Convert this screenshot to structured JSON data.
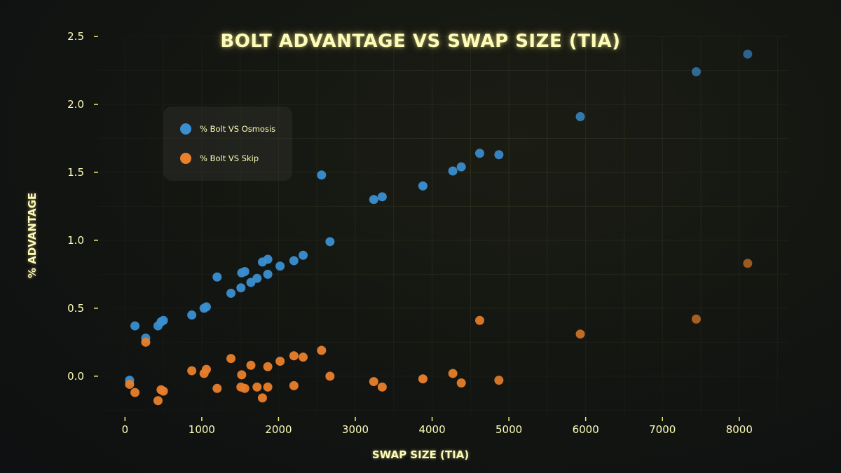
{
  "chart_data": {
    "type": "scatter",
    "title": "BOLT ADVANTAGE VS SWAP SIZE (TIA)",
    "xlabel": "SWAP SIZE (TIA)",
    "ylabel": "% ADVANTAGE",
    "xlim": [
      -350,
      8650
    ],
    "ylim": [
      -0.3,
      2.5
    ],
    "xticks": [
      0,
      1000,
      2000,
      3000,
      4000,
      5000,
      6000,
      7000,
      8000
    ],
    "yticks": [
      0.0,
      0.5,
      1.0,
      1.5,
      2.0,
      2.5
    ],
    "xtick_labels": [
      "0",
      "1000",
      "2000",
      "3000",
      "4000",
      "5000",
      "6000",
      "7000",
      "8000"
    ],
    "ytick_labels": [
      "0.0",
      "0.5",
      "1.0",
      "1.5",
      "2.0",
      "2.5"
    ],
    "grid": true,
    "legend_position": "top-left",
    "series": [
      {
        "name": "% Bolt VS Osmosis",
        "color": "#3a8fd1",
        "points": [
          [
            60,
            -0.03
          ],
          [
            130,
            0.37
          ],
          [
            270,
            0.28
          ],
          [
            430,
            0.37
          ],
          [
            470,
            0.4
          ],
          [
            500,
            0.41
          ],
          [
            870,
            0.45
          ],
          [
            1030,
            0.5
          ],
          [
            1060,
            0.51
          ],
          [
            1200,
            0.73
          ],
          [
            1380,
            0.61
          ],
          [
            1510,
            0.65
          ],
          [
            1520,
            0.76
          ],
          [
            1560,
            0.77
          ],
          [
            1640,
            0.69
          ],
          [
            1720,
            0.72
          ],
          [
            1790,
            0.84
          ],
          [
            1860,
            0.86
          ],
          [
            1860,
            0.75
          ],
          [
            2020,
            0.81
          ],
          [
            2200,
            0.85
          ],
          [
            2320,
            0.89
          ],
          [
            2560,
            1.48
          ],
          [
            2670,
            0.99
          ],
          [
            3240,
            1.3
          ],
          [
            3350,
            1.32
          ],
          [
            3880,
            1.4
          ],
          [
            4270,
            1.51
          ],
          [
            4380,
            1.54
          ],
          [
            4620,
            1.64
          ],
          [
            4870,
            1.63
          ],
          [
            5930,
            1.91
          ],
          [
            7440,
            2.24
          ],
          [
            8110,
            2.37
          ]
        ]
      },
      {
        "name": "% Bolt VS Skip",
        "color": "#e9802b",
        "points": [
          [
            60,
            -0.06
          ],
          [
            130,
            -0.12
          ],
          [
            270,
            0.25
          ],
          [
            430,
            -0.18
          ],
          [
            470,
            -0.1
          ],
          [
            500,
            -0.11
          ],
          [
            870,
            0.04
          ],
          [
            1030,
            0.02
          ],
          [
            1060,
            0.05
          ],
          [
            1200,
            -0.09
          ],
          [
            1380,
            0.13
          ],
          [
            1510,
            -0.08
          ],
          [
            1520,
            0.01
          ],
          [
            1560,
            -0.09
          ],
          [
            1640,
            0.08
          ],
          [
            1720,
            -0.08
          ],
          [
            1790,
            -0.16
          ],
          [
            1860,
            -0.08
          ],
          [
            1860,
            0.07
          ],
          [
            2020,
            0.11
          ],
          [
            2200,
            0.15
          ],
          [
            2200,
            -0.07
          ],
          [
            2320,
            0.14
          ],
          [
            2560,
            0.19
          ],
          [
            2670,
            0.0
          ],
          [
            3240,
            -0.04
          ],
          [
            3350,
            -0.08
          ],
          [
            3880,
            -0.02
          ],
          [
            4270,
            0.02
          ],
          [
            4380,
            -0.05
          ],
          [
            4620,
            0.41
          ],
          [
            4870,
            -0.03
          ],
          [
            5930,
            0.31
          ],
          [
            7440,
            0.42
          ],
          [
            8110,
            0.83
          ]
        ]
      }
    ]
  }
}
